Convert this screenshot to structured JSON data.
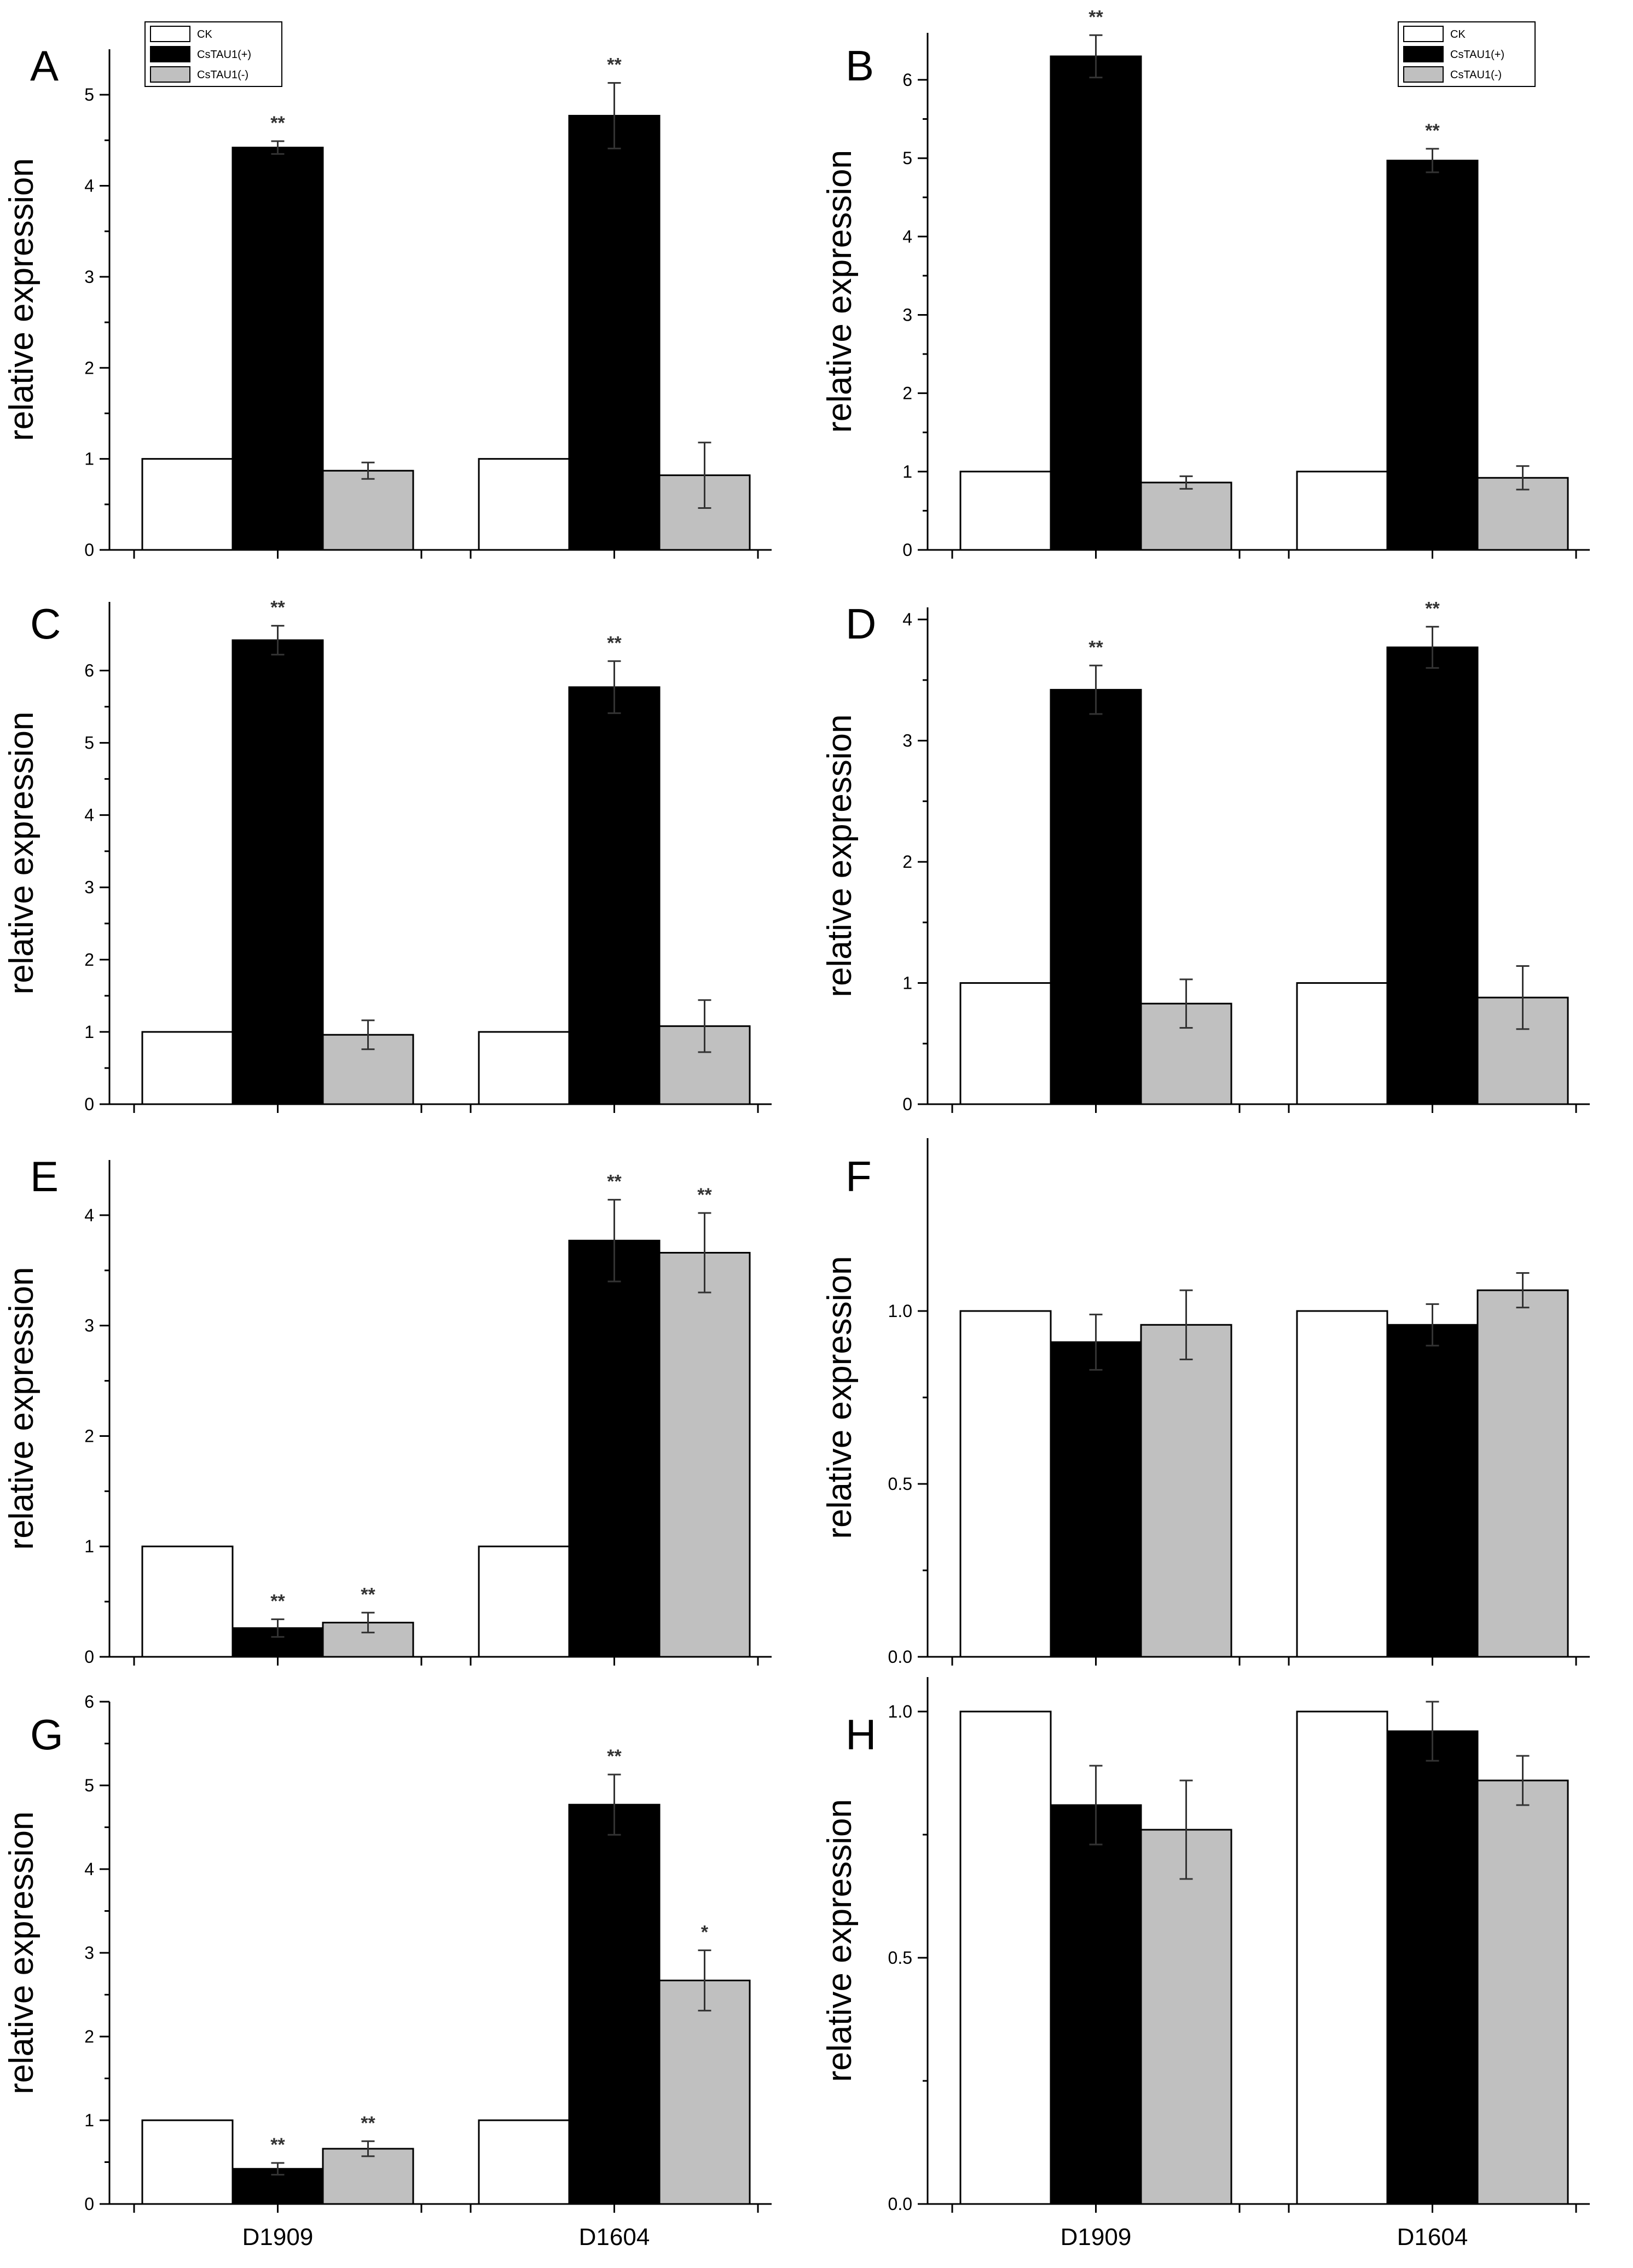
{
  "figure": {
    "colors": {
      "CK": "#ffffff",
      "CsTAU1(+)": "#000000",
      "CsTAU1(-)": "#c0c0c0",
      "stroke": "#000000",
      "sig": "#333333"
    },
    "legend_entries": [
      "CK",
      "CsTAU1(+)",
      "CsTAU1(-)"
    ]
  },
  "chart_data": [
    {
      "panel": "A",
      "type": "bar",
      "ylabel": "relative expression",
      "categories": [
        "D1909",
        "D1604"
      ],
      "show_category_labels": false,
      "ylim": [
        0,
        5.5
      ],
      "yticks": [
        0,
        1,
        2,
        3,
        4,
        5
      ],
      "ytick_labels": [
        "0",
        "1",
        "2",
        "3",
        "4",
        "5"
      ],
      "legend": "top-left",
      "series": [
        {
          "name": "CK",
          "values": [
            1.0,
            1.0
          ],
          "errors": [
            0,
            0
          ],
          "sig": [
            "",
            ""
          ]
        },
        {
          "name": "CsTAU1(+)",
          "values": [
            4.42,
            4.77
          ],
          "errors": [
            0.07,
            0.36
          ],
          "sig": [
            "**",
            "**"
          ]
        },
        {
          "name": "CsTAU1(-)",
          "values": [
            0.87,
            0.82
          ],
          "errors": [
            0.09,
            0.36
          ],
          "sig": [
            "",
            ""
          ]
        }
      ]
    },
    {
      "panel": "B",
      "type": "bar",
      "ylabel": "relative expression",
      "categories": [
        "D1909",
        "D1604"
      ],
      "show_category_labels": false,
      "ylim": [
        0,
        6.6
      ],
      "yticks": [
        0,
        1,
        2,
        3,
        4,
        5,
        6
      ],
      "ytick_labels": [
        "0",
        "1",
        "2",
        "3",
        "4",
        "5",
        "6"
      ],
      "legend": "top-right",
      "series": [
        {
          "name": "CK",
          "values": [
            1.0,
            1.0
          ],
          "errors": [
            0,
            0
          ],
          "sig": [
            "",
            ""
          ]
        },
        {
          "name": "CsTAU1(+)",
          "values": [
            6.3,
            4.97
          ],
          "errors": [
            0.27,
            0.15
          ],
          "sig": [
            "**",
            "**"
          ]
        },
        {
          "name": "CsTAU1(-)",
          "values": [
            0.86,
            0.92
          ],
          "errors": [
            0.08,
            0.15
          ],
          "sig": [
            "",
            ""
          ]
        }
      ]
    },
    {
      "panel": "C",
      "type": "bar",
      "ylabel": "relative expression",
      "categories": [
        "D1909",
        "D1604"
      ],
      "show_category_labels": false,
      "ylim": [
        0,
        6.95
      ],
      "yticks": [
        0,
        1,
        2,
        3,
        4,
        5,
        6
      ],
      "ytick_labels": [
        "0",
        "1",
        "2",
        "3",
        "4",
        "5",
        "6"
      ],
      "legend": "none",
      "series": [
        {
          "name": "CK",
          "values": [
            1.0,
            1.0
          ],
          "errors": [
            0,
            0
          ],
          "sig": [
            "",
            ""
          ]
        },
        {
          "name": "CsTAU1(+)",
          "values": [
            6.42,
            5.77
          ],
          "errors": [
            0.2,
            0.36
          ],
          "sig": [
            "**",
            "**"
          ]
        },
        {
          "name": "CsTAU1(-)",
          "values": [
            0.96,
            1.08
          ],
          "errors": [
            0.2,
            0.36
          ],
          "sig": [
            "",
            ""
          ]
        }
      ]
    },
    {
      "panel": "D",
      "type": "bar",
      "ylabel": "relative expression",
      "categories": [
        "D1909",
        "D1604"
      ],
      "show_category_labels": false,
      "ylim": [
        0,
        4.1
      ],
      "yticks": [
        0,
        1,
        2,
        3,
        4
      ],
      "ytick_labels": [
        "0",
        "1",
        "2",
        "3",
        "4"
      ],
      "legend": "none",
      "series": [
        {
          "name": "CK",
          "values": [
            1.0,
            1.0
          ],
          "errors": [
            0,
            0
          ],
          "sig": [
            "",
            ""
          ]
        },
        {
          "name": "CsTAU1(+)",
          "values": [
            3.42,
            3.77
          ],
          "errors": [
            0.2,
            0.17
          ],
          "sig": [
            "**",
            "**"
          ]
        },
        {
          "name": "CsTAU1(-)",
          "values": [
            0.83,
            0.88
          ],
          "errors": [
            0.2,
            0.26
          ],
          "sig": [
            "",
            ""
          ]
        }
      ]
    },
    {
      "panel": "E",
      "type": "bar",
      "ylabel": "relative expression",
      "categories": [
        "D1909",
        "D1604"
      ],
      "show_category_labels": false,
      "ylim": [
        0,
        4.5
      ],
      "yticks": [
        0,
        1,
        2,
        3,
        4
      ],
      "ytick_labels": [
        "0",
        "1",
        "2",
        "3",
        "4"
      ],
      "legend": "none",
      "series": [
        {
          "name": "CK",
          "values": [
            1.0,
            1.0
          ],
          "errors": [
            0,
            0
          ],
          "sig": [
            "",
            ""
          ]
        },
        {
          "name": "CsTAU1(+)",
          "values": [
            0.26,
            3.77
          ],
          "errors": [
            0.08,
            0.37
          ],
          "sig": [
            "**",
            "**"
          ]
        },
        {
          "name": "CsTAU1(-)",
          "values": [
            0.31,
            3.66
          ],
          "errors": [
            0.09,
            0.36
          ],
          "sig": [
            "**",
            "**"
          ]
        }
      ]
    },
    {
      "panel": "F",
      "type": "bar",
      "ylabel": "relative expression",
      "categories": [
        "D1909",
        "D1604"
      ],
      "show_category_labels": false,
      "ylim": [
        0,
        1.5
      ],
      "yticks": [
        0,
        0.5,
        1.0
      ],
      "ytick_labels": [
        "0.0",
        "0.5",
        "1.0"
      ],
      "legend": "none",
      "series": [
        {
          "name": "CK",
          "values": [
            1.0,
            1.0
          ],
          "errors": [
            0,
            0
          ],
          "sig": [
            "",
            ""
          ]
        },
        {
          "name": "CsTAU1(+)",
          "values": [
            0.91,
            0.96
          ],
          "errors": [
            0.08,
            0.06
          ],
          "sig": [
            "",
            ""
          ]
        },
        {
          "name": "CsTAU1(-)",
          "values": [
            0.96,
            1.06
          ],
          "errors": [
            0.1,
            0.05
          ],
          "sig": [
            "",
            ""
          ]
        }
      ]
    },
    {
      "panel": "G",
      "type": "bar",
      "ylabel": "relative expression",
      "categories": [
        "D1909",
        "D1604"
      ],
      "show_category_labels": true,
      "ylim": [
        0,
        6.0
      ],
      "yticks": [
        0,
        1,
        2,
        3,
        4,
        5,
        6
      ],
      "ytick_labels": [
        "0",
        "1",
        "2",
        "3",
        "4",
        "5",
        "6"
      ],
      "legend": "none",
      "series": [
        {
          "name": "CK",
          "values": [
            1.0,
            1.0
          ],
          "errors": [
            0,
            0
          ],
          "sig": [
            "",
            ""
          ]
        },
        {
          "name": "CsTAU1(+)",
          "values": [
            0.42,
            4.77
          ],
          "errors": [
            0.07,
            0.36
          ],
          "sig": [
            "**",
            "**"
          ]
        },
        {
          "name": "CsTAU1(-)",
          "values": [
            0.66,
            2.67
          ],
          "errors": [
            0.09,
            0.36
          ],
          "sig": [
            "**",
            "*"
          ]
        }
      ]
    },
    {
      "panel": "H",
      "type": "bar",
      "ylabel": "relative expression",
      "categories": [
        "D1909",
        "D1604"
      ],
      "show_category_labels": true,
      "ylim": [
        0,
        1.07
      ],
      "yticks": [
        0,
        0.5,
        1.0
      ],
      "ytick_labels": [
        "0.0",
        "0.5",
        "1.0"
      ],
      "legend": "none",
      "series": [
        {
          "name": "CK",
          "values": [
            1.0,
            1.0
          ],
          "errors": [
            0,
            0
          ],
          "sig": [
            "",
            ""
          ]
        },
        {
          "name": "CsTAU1(+)",
          "values": [
            0.81,
            0.96
          ],
          "errors": [
            0.08,
            0.06
          ],
          "sig": [
            "",
            ""
          ]
        },
        {
          "name": "CsTAU1(-)",
          "values": [
            0.76,
            0.86
          ],
          "errors": [
            0.1,
            0.05
          ],
          "sig": [
            "",
            ""
          ]
        }
      ]
    }
  ]
}
